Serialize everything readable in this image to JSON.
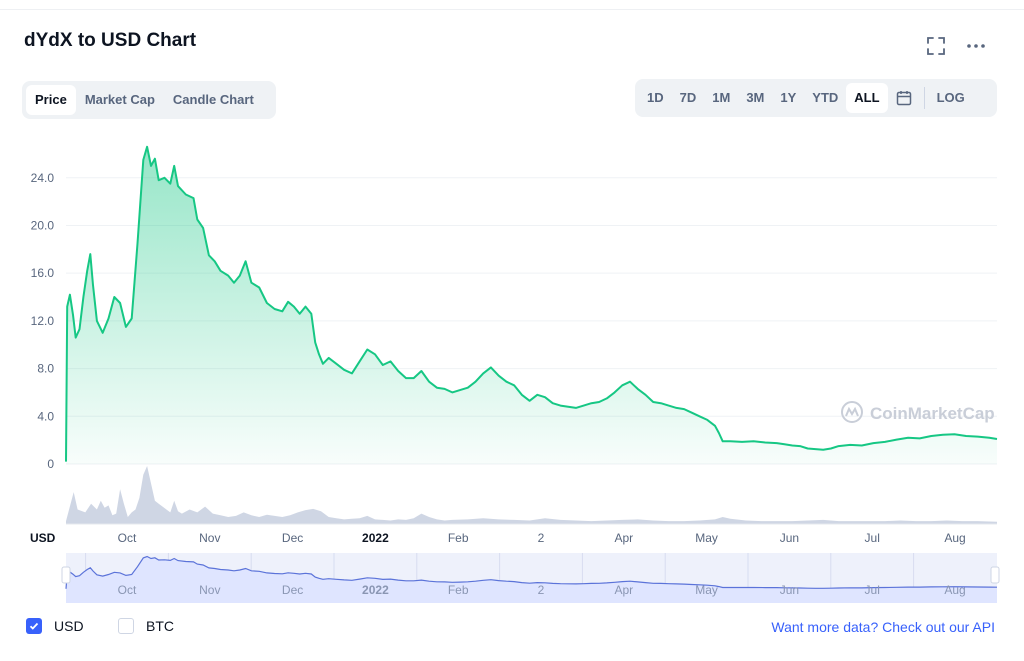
{
  "header": {
    "title": "dYdX to USD Chart",
    "fullscreen_icon": "fullscreen-icon",
    "more_icon": "more-horizontal-icon"
  },
  "chart_tabs": [
    {
      "label": "Price",
      "active": true
    },
    {
      "label": "Market Cap",
      "active": false
    },
    {
      "label": "Candle Chart",
      "active": false
    }
  ],
  "range_tabs": [
    {
      "label": "1D",
      "active": false
    },
    {
      "label": "7D",
      "active": false
    },
    {
      "label": "1M",
      "active": false
    },
    {
      "label": "3M",
      "active": false
    },
    {
      "label": "1Y",
      "active": false
    },
    {
      "label": "YTD",
      "active": false
    },
    {
      "label": "ALL",
      "active": true
    }
  ],
  "calendar_icon": "calendar-icon",
  "log_label": "LOG",
  "watermark": "CoinMarketCap",
  "currency_axis_label": "USD",
  "colors": {
    "line": "#16c784",
    "accent": "#3861fb",
    "volume": "#cfd6e4",
    "navigator_fill": "#dfe5ff"
  },
  "chart_data": {
    "type": "area",
    "y_ticks": [
      "0",
      "4.0",
      "8.0",
      "12.0",
      "16.0",
      "20.0",
      "24.0"
    ],
    "ylim": [
      0,
      27
    ],
    "x_tick_labels": [
      "Oct",
      "Nov",
      "Dec",
      "2022",
      "Feb",
      "2",
      "Apr",
      "May",
      "Jun",
      "Jul",
      "Aug"
    ],
    "bold_tick": "2022",
    "series": [
      {
        "price_points": [
          [
            0,
            0.2
          ],
          [
            0.3,
            13.2
          ],
          [
            1,
            14.2
          ],
          [
            1.8,
            12.5
          ],
          [
            2.5,
            10.6
          ],
          [
            3.5,
            11.3
          ],
          [
            4.5,
            14.0
          ],
          [
            5.5,
            16.2
          ],
          [
            6.3,
            17.6
          ],
          [
            7,
            15.0
          ],
          [
            8,
            12.0
          ],
          [
            9.5,
            11.0
          ],
          [
            11,
            12.2
          ],
          [
            12.5,
            14.0
          ],
          [
            14,
            13.5
          ],
          [
            15.5,
            11.5
          ],
          [
            17,
            12.2
          ],
          [
            18.5,
            18.5
          ],
          [
            20,
            25.5
          ],
          [
            21,
            26.6
          ],
          [
            22,
            25.0
          ],
          [
            23,
            25.6
          ],
          [
            24,
            23.8
          ],
          [
            25.5,
            24.0
          ],
          [
            27,
            23.5
          ],
          [
            28,
            25.0
          ],
          [
            29,
            23.3
          ],
          [
            31,
            22.6
          ],
          [
            33,
            22.3
          ],
          [
            34,
            20.5
          ],
          [
            35.5,
            19.8
          ],
          [
            37,
            17.5
          ],
          [
            38.5,
            17.0
          ],
          [
            40,
            16.2
          ],
          [
            42,
            15.8
          ],
          [
            43.5,
            15.2
          ],
          [
            45,
            15.8
          ],
          [
            46.5,
            17.0
          ],
          [
            48,
            15.2
          ],
          [
            50,
            14.8
          ],
          [
            52,
            13.5
          ],
          [
            54,
            13.0
          ],
          [
            56,
            12.8
          ],
          [
            57.5,
            13.6
          ],
          [
            59,
            13.2
          ],
          [
            60.5,
            12.6
          ],
          [
            62,
            13.2
          ],
          [
            63.5,
            12.6
          ],
          [
            64.5,
            10.2
          ],
          [
            65.5,
            9.2
          ],
          [
            66.5,
            8.4
          ],
          [
            68,
            8.9
          ],
          [
            70,
            8.4
          ],
          [
            72,
            7.9
          ],
          [
            74,
            7.6
          ],
          [
            76,
            8.6
          ],
          [
            78,
            9.6
          ],
          [
            80,
            9.2
          ],
          [
            82,
            8.3
          ],
          [
            84,
            8.6
          ],
          [
            86,
            7.8
          ],
          [
            88,
            7.2
          ],
          [
            90,
            7.2
          ],
          [
            92,
            7.8
          ],
          [
            94,
            6.9
          ],
          [
            96,
            6.4
          ],
          [
            98,
            6.3
          ],
          [
            100,
            6.0
          ],
          [
            102,
            6.2
          ],
          [
            104,
            6.4
          ],
          [
            106,
            6.9
          ],
          [
            108,
            7.6
          ],
          [
            110,
            8.1
          ],
          [
            112,
            7.4
          ],
          [
            114,
            6.9
          ],
          [
            116,
            6.6
          ],
          [
            118,
            5.8
          ],
          [
            120,
            5.3
          ],
          [
            122,
            5.8
          ],
          [
            124,
            5.6
          ],
          [
            126,
            5.1
          ],
          [
            128,
            4.9
          ],
          [
            130,
            4.8
          ],
          [
            132,
            4.7
          ],
          [
            134,
            4.9
          ],
          [
            136,
            5.1
          ],
          [
            138,
            5.2
          ],
          [
            140,
            5.5
          ],
          [
            142,
            6.0
          ],
          [
            144,
            6.6
          ],
          [
            146,
            6.9
          ],
          [
            148,
            6.3
          ],
          [
            150,
            5.8
          ],
          [
            152,
            5.2
          ],
          [
            154,
            5.1
          ],
          [
            156,
            4.9
          ],
          [
            158,
            4.7
          ],
          [
            160,
            4.6
          ],
          [
            162,
            4.3
          ],
          [
            164,
            4.0
          ],
          [
            166,
            3.7
          ],
          [
            168,
            3.2
          ],
          [
            169,
            2.6
          ],
          [
            170,
            1.9
          ],
          [
            172,
            1.9
          ],
          [
            175,
            1.85
          ],
          [
            178,
            1.9
          ],
          [
            181,
            1.8
          ],
          [
            184,
            1.75
          ],
          [
            186,
            1.65
          ],
          [
            188,
            1.55
          ],
          [
            190,
            1.5
          ],
          [
            192,
            1.3
          ],
          [
            194,
            1.25
          ],
          [
            196,
            1.2
          ],
          [
            198,
            1.3
          ],
          [
            200,
            1.5
          ],
          [
            203,
            1.6
          ],
          [
            206,
            1.55
          ],
          [
            209,
            1.75
          ],
          [
            212,
            1.85
          ],
          [
            215,
            2.05
          ],
          [
            218,
            2.2
          ],
          [
            221,
            2.15
          ],
          [
            224,
            2.35
          ],
          [
            227,
            2.45
          ],
          [
            230,
            2.5
          ],
          [
            233,
            2.35
          ],
          [
            236,
            2.3
          ],
          [
            239,
            2.2
          ],
          [
            241,
            2.1
          ]
        ],
        "volume_points": [
          [
            0,
            0.05
          ],
          [
            2,
            0.55
          ],
          [
            3,
            0.25
          ],
          [
            5,
            0.2
          ],
          [
            6.5,
            0.35
          ],
          [
            8,
            0.25
          ],
          [
            9,
            0.4
          ],
          [
            10,
            0.28
          ],
          [
            11,
            0.32
          ],
          [
            12,
            0.15
          ],
          [
            13,
            0.18
          ],
          [
            14,
            0.6
          ],
          [
            15,
            0.35
          ],
          [
            16,
            0.12
          ],
          [
            17,
            0.2
          ],
          [
            18,
            0.25
          ],
          [
            19,
            0.45
          ],
          [
            20,
            0.85
          ],
          [
            21,
            1.0
          ],
          [
            22,
            0.7
          ],
          [
            23,
            0.4
          ],
          [
            24,
            0.35
          ],
          [
            25,
            0.3
          ],
          [
            26,
            0.25
          ],
          [
            27,
            0.2
          ],
          [
            28,
            0.4
          ],
          [
            29,
            0.22
          ],
          [
            30,
            0.18
          ],
          [
            32,
            0.25
          ],
          [
            34,
            0.2
          ],
          [
            36,
            0.3
          ],
          [
            38,
            0.18
          ],
          [
            40,
            0.15
          ],
          [
            42,
            0.12
          ],
          [
            44,
            0.14
          ],
          [
            46,
            0.2
          ],
          [
            48,
            0.15
          ],
          [
            50,
            0.12
          ],
          [
            52,
            0.16
          ],
          [
            54,
            0.14
          ],
          [
            56,
            0.12
          ],
          [
            58,
            0.15
          ],
          [
            60,
            0.2
          ],
          [
            62,
            0.24
          ],
          [
            64,
            0.26
          ],
          [
            66,
            0.22
          ],
          [
            68,
            0.12
          ],
          [
            70,
            0.1
          ],
          [
            72,
            0.08
          ],
          [
            74,
            0.09
          ],
          [
            76,
            0.1
          ],
          [
            78,
            0.14
          ],
          [
            80,
            0.08
          ],
          [
            82,
            0.07
          ],
          [
            84,
            0.06
          ],
          [
            86,
            0.08
          ],
          [
            88,
            0.07
          ],
          [
            90,
            0.1
          ],
          [
            92,
            0.18
          ],
          [
            94,
            0.12
          ],
          [
            96,
            0.08
          ],
          [
            98,
            0.06
          ],
          [
            100,
            0.07
          ],
          [
            104,
            0.08
          ],
          [
            108,
            0.1
          ],
          [
            112,
            0.08
          ],
          [
            116,
            0.07
          ],
          [
            120,
            0.06
          ],
          [
            124,
            0.1
          ],
          [
            128,
            0.07
          ],
          [
            132,
            0.06
          ],
          [
            136,
            0.05
          ],
          [
            140,
            0.06
          ],
          [
            144,
            0.07
          ],
          [
            148,
            0.08
          ],
          [
            152,
            0.06
          ],
          [
            156,
            0.05
          ],
          [
            160,
            0.05
          ],
          [
            164,
            0.06
          ],
          [
            168,
            0.08
          ],
          [
            170,
            0.12
          ],
          [
            172,
            0.09
          ],
          [
            176,
            0.06
          ],
          [
            180,
            0.05
          ],
          [
            184,
            0.05
          ],
          [
            188,
            0.05
          ],
          [
            192,
            0.06
          ],
          [
            196,
            0.07
          ],
          [
            200,
            0.05
          ],
          [
            204,
            0.05
          ],
          [
            208,
            0.05
          ],
          [
            212,
            0.05
          ],
          [
            216,
            0.06
          ],
          [
            220,
            0.05
          ],
          [
            224,
            0.05
          ],
          [
            228,
            0.06
          ],
          [
            232,
            0.05
          ],
          [
            236,
            0.05
          ],
          [
            241,
            0.04
          ]
        ]
      }
    ]
  },
  "legend": {
    "usd_label": "USD",
    "usd_checked": true,
    "btc_label": "BTC",
    "btc_checked": false
  },
  "api_link": {
    "prefix": "Want more data?",
    "link_text": "Check out our API"
  }
}
